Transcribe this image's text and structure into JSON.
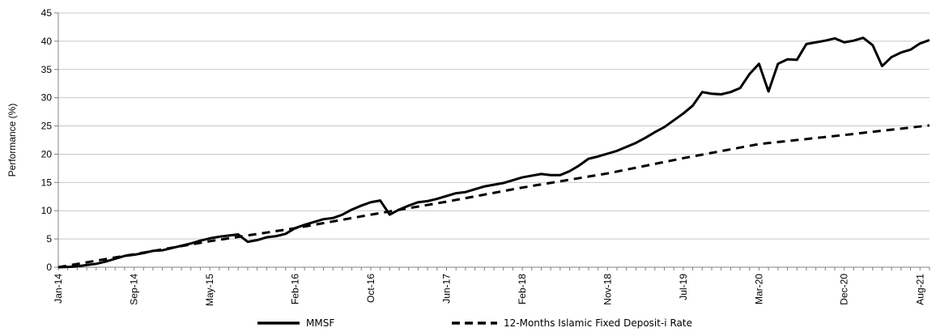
{
  "chart_data": {
    "type": "line",
    "title": "",
    "xlabel": "",
    "ylabel": "Performance (%)",
    "ylim": [
      0,
      45
    ],
    "yticks": [
      0,
      5,
      10,
      15,
      20,
      25,
      30,
      35,
      40,
      45
    ],
    "grid": "horizontal",
    "legend_position": "bottom-center",
    "x_tick_labels": [
      "Jan-14",
      "Sep-14",
      "May-15",
      "Feb-16",
      "Oct-16",
      "Jun-17",
      "Feb-18",
      "Nov-18",
      "Jul-19",
      "Mar-20",
      "Dec-20",
      "Aug-21"
    ],
    "series": [
      {
        "name": "MMSF",
        "color": "#000000",
        "style": "solid",
        "points": [
          [
            "2014-01",
            0.0
          ],
          [
            "2014-02",
            0.05
          ],
          [
            "2014-03",
            0.15
          ],
          [
            "2014-04",
            0.4
          ],
          [
            "2014-05",
            0.6
          ],
          [
            "2014-06",
            1.0
          ],
          [
            "2014-07",
            1.5
          ],
          [
            "2014-08",
            2.0
          ],
          [
            "2014-09",
            2.2
          ],
          [
            "2014-10",
            2.5
          ],
          [
            "2014-11",
            2.9
          ],
          [
            "2014-12",
            3.0
          ],
          [
            "2015-01",
            3.4
          ],
          [
            "2015-02",
            3.8
          ],
          [
            "2015-03",
            4.2
          ],
          [
            "2015-04",
            4.7
          ],
          [
            "2015-05",
            5.1
          ],
          [
            "2015-06",
            5.4
          ],
          [
            "2015-07",
            5.6
          ],
          [
            "2015-08",
            5.8
          ],
          [
            "2015-09",
            4.5
          ],
          [
            "2015-10",
            4.8
          ],
          [
            "2015-11",
            5.3
          ],
          [
            "2015-12",
            5.5
          ],
          [
            "2016-01",
            5.9
          ],
          [
            "2016-02",
            6.9
          ],
          [
            "2016-03",
            7.5
          ],
          [
            "2016-04",
            8.0
          ],
          [
            "2016-05",
            8.5
          ],
          [
            "2016-06",
            8.7
          ],
          [
            "2016-07",
            9.3
          ],
          [
            "2016-08",
            10.2
          ],
          [
            "2016-09",
            10.9
          ],
          [
            "2016-10",
            11.5
          ],
          [
            "2016-11",
            11.8
          ],
          [
            "2016-12",
            9.3
          ],
          [
            "2017-01",
            10.2
          ],
          [
            "2017-02",
            10.9
          ],
          [
            "2017-03",
            11.5
          ],
          [
            "2017-04",
            11.7
          ],
          [
            "2017-05",
            12.1
          ],
          [
            "2017-06",
            12.6
          ],
          [
            "2017-07",
            13.1
          ],
          [
            "2017-08",
            13.3
          ],
          [
            "2017-09",
            13.8
          ],
          [
            "2017-10",
            14.3
          ],
          [
            "2017-11",
            14.6
          ],
          [
            "2017-12",
            14.9
          ],
          [
            "2018-01",
            15.4
          ],
          [
            "2018-02",
            15.9
          ],
          [
            "2018-03",
            16.2
          ],
          [
            "2018-04",
            16.5
          ],
          [
            "2018-05",
            16.3
          ],
          [
            "2018-06",
            16.3
          ],
          [
            "2018-07",
            17.0
          ],
          [
            "2018-08",
            18.0
          ],
          [
            "2018-09",
            19.2
          ],
          [
            "2018-10",
            19.6
          ],
          [
            "2018-11",
            20.1
          ],
          [
            "2018-12",
            20.6
          ],
          [
            "2019-01",
            21.3
          ],
          [
            "2019-02",
            22.0
          ],
          [
            "2019-03",
            22.9
          ],
          [
            "2019-04",
            23.9
          ],
          [
            "2019-05",
            24.8
          ],
          [
            "2019-06",
            26.0
          ],
          [
            "2019-07",
            27.2
          ],
          [
            "2019-08",
            28.6
          ],
          [
            "2019-09",
            31.0
          ],
          [
            "2019-10",
            30.7
          ],
          [
            "2019-11",
            30.6
          ],
          [
            "2019-12",
            31.0
          ],
          [
            "2020-01",
            31.7
          ],
          [
            "2020-02",
            34.2
          ],
          [
            "2020-03",
            36.0
          ],
          [
            "2020-04",
            31.1
          ],
          [
            "2020-05",
            36.0
          ],
          [
            "2020-06",
            36.8
          ],
          [
            "2020-07",
            36.7
          ],
          [
            "2020-08",
            39.5
          ],
          [
            "2020-09",
            39.8
          ],
          [
            "2020-10",
            40.1
          ],
          [
            "2020-11",
            40.5
          ],
          [
            "2020-12",
            39.8
          ],
          [
            "2021-01",
            40.1
          ],
          [
            "2021-02",
            40.6
          ],
          [
            "2021-03",
            39.3
          ],
          [
            "2021-04",
            35.6
          ],
          [
            "2021-05",
            37.2
          ],
          [
            "2021-06",
            38.0
          ],
          [
            "2021-07",
            38.5
          ],
          [
            "2021-08",
            39.6
          ],
          [
            "2021-09",
            40.2
          ]
        ]
      },
      {
        "name": "12-Months Islamic Fixed Deposit-i Rate",
        "color": "#000000",
        "style": "dashed",
        "points": [
          [
            "2014-01",
            0.0
          ],
          [
            "2015-05",
            4.6
          ],
          [
            "2016-02",
            6.9
          ],
          [
            "2016-10",
            9.3
          ],
          [
            "2017-06",
            11.6
          ],
          [
            "2018-02",
            14.1
          ],
          [
            "2018-11",
            16.6
          ],
          [
            "2019-07",
            19.3
          ],
          [
            "2020-03",
            21.8
          ],
          [
            "2020-12",
            23.4
          ],
          [
            "2021-09",
            25.1
          ]
        ]
      }
    ]
  }
}
